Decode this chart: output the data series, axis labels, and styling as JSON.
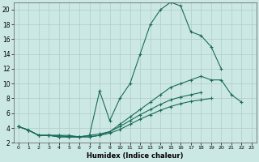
{
  "xlabel": "Humidex (Indice chaleur)",
  "background_color": "#cce8e4",
  "grid_color": "#b0ccc8",
  "line_color": "#1a6b5a",
  "xlim": [
    -0.5,
    23.5
  ],
  "ylim": [
    2,
    21
  ],
  "yticks": [
    2,
    4,
    6,
    8,
    10,
    12,
    14,
    16,
    18,
    20
  ],
  "xticks": [
    0,
    1,
    2,
    3,
    4,
    5,
    6,
    7,
    8,
    9,
    10,
    11,
    12,
    13,
    14,
    15,
    16,
    17,
    18,
    19,
    20,
    21,
    22,
    23
  ],
  "series": [
    {
      "x": [
        0,
        1,
        2,
        3,
        4,
        5,
        6,
        7,
        8,
        9,
        10,
        11,
        12,
        13,
        14,
        15,
        16,
        17,
        18,
        19,
        20
      ],
      "y": [
        4.2,
        3.7,
        3.0,
        3.0,
        3.0,
        3.0,
        2.8,
        3.0,
        9.0,
        5.0,
        8.0,
        10.0,
        14.0,
        18.0,
        20.0,
        21.0,
        20.5,
        17.0,
        16.5,
        15.0,
        12.0
      ]
    },
    {
      "x": [
        0,
        1,
        2,
        3,
        4,
        5,
        6,
        7,
        8,
        9,
        10,
        11,
        12,
        13,
        14,
        15,
        16,
        17,
        18,
        19,
        20,
        21,
        22
      ],
      "y": [
        4.2,
        3.7,
        3.0,
        3.0,
        3.0,
        2.8,
        2.8,
        3.0,
        3.2,
        3.5,
        4.5,
        5.5,
        6.5,
        7.5,
        8.5,
        9.5,
        10.0,
        10.5,
        11.0,
        10.5,
        10.5,
        8.5,
        7.5
      ]
    },
    {
      "x": [
        0,
        1,
        2,
        3,
        4,
        5,
        6,
        7,
        8,
        9,
        10,
        11,
        12,
        13,
        14,
        15,
        16,
        17,
        18
      ],
      "y": [
        4.2,
        3.7,
        3.0,
        3.0,
        2.8,
        2.8,
        2.8,
        2.8,
        3.0,
        3.5,
        4.2,
        5.0,
        5.8,
        6.5,
        7.2,
        7.8,
        8.2,
        8.5,
        8.8
      ]
    },
    {
      "x": [
        0,
        1,
        2,
        3,
        4,
        5,
        6,
        7,
        8,
        9,
        10,
        11,
        12,
        13,
        14,
        15,
        16,
        17,
        18,
        19
      ],
      "y": [
        4.2,
        3.7,
        3.0,
        3.0,
        2.8,
        2.8,
        2.8,
        2.8,
        3.0,
        3.3,
        3.8,
        4.5,
        5.2,
        5.8,
        6.4,
        6.9,
        7.3,
        7.6,
        7.8,
        8.0
      ]
    }
  ]
}
